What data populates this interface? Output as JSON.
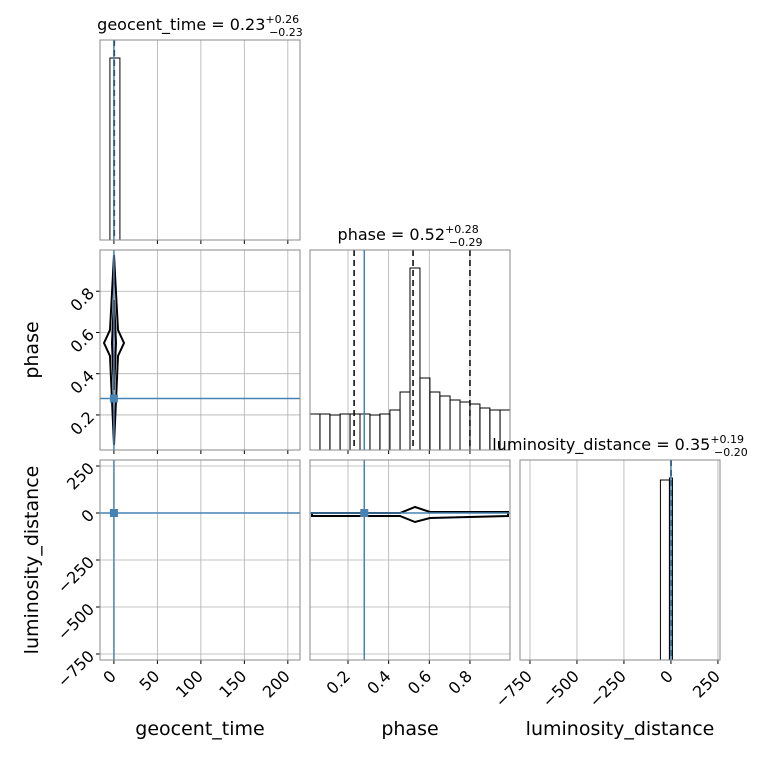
{
  "chart_data": {
    "type": "corner",
    "parameters": [
      {
        "name": "geocent_time",
        "title": "geocent_time = 0.23",
        "title_upper": "+0.26",
        "title_lower": "−0.23",
        "lim": [
          -16,
          214
        ],
        "ticks": [
          0,
          50,
          100,
          150,
          200
        ],
        "truth": 0,
        "quantiles": [
          0,
          0.23,
          0.49
        ],
        "hist": {
          "bins": [
            -4.6,
            6.9
          ],
          "counts": [
            0.91
          ],
          "ylim": [
            0,
            1
          ]
        }
      },
      {
        "name": "phase",
        "title": "phase = 0.52",
        "title_upper": "+0.28",
        "title_lower": "−0.29",
        "lim": [
          0.03,
          1.0
        ],
        "xlim": [
          0.013,
          0.997
        ],
        "ticks": [
          0.2,
          0.4,
          0.6,
          0.8
        ],
        "truth": 0.28,
        "quantiles": [
          0.23,
          0.52,
          0.8
        ],
        "hist": {
          "bins": [
            0.013,
            0.062,
            0.111,
            0.161,
            0.21,
            0.259,
            0.308,
            0.357,
            0.406,
            0.456,
            0.505,
            0.554,
            0.603,
            0.652,
            0.702,
            0.751,
            0.8,
            0.849,
            0.898,
            0.948,
            0.997
          ],
          "counts": [
            0.18,
            0.18,
            0.175,
            0.18,
            0.18,
            0.18,
            0.175,
            0.18,
            0.2,
            0.29,
            0.91,
            0.36,
            0.29,
            0.27,
            0.25,
            0.24,
            0.23,
            0.21,
            0.2,
            0.2
          ],
          "ylim": [
            0,
            1
          ]
        }
      },
      {
        "name": "luminosity_distance",
        "title": "luminosity_distance = 0.35",
        "title_upper": "+0.19",
        "title_lower": "−0.20",
        "lim": [
          -782,
          282
        ],
        "xlim": [
          -803,
          261
        ],
        "ticks": [
          {
            "value": -750,
            "label": "−750"
          },
          {
            "value": -500,
            "label": "−500"
          },
          {
            "value": -250,
            "label": "−250"
          },
          0,
          250
        ],
        "truth": 0,
        "quantiles": [
          0.15,
          0.35,
          0.54
        ],
        "hist": {
          "bins": [
            -56,
            -8,
            8
          ],
          "counts": [
            0.9,
            0.91
          ],
          "ylim": [
            0,
            1
          ]
        }
      }
    ],
    "grid": true,
    "truth_color": "#4682b4",
    "hist_color": "#000000"
  }
}
